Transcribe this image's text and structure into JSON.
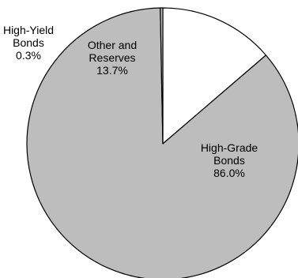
{
  "chart_data": {
    "type": "pie",
    "start": "12 o'clock",
    "direction": "clockwise",
    "slices": [
      {
        "name": "High-Grade Bonds",
        "value": 86.0,
        "label_lines": [
          "High-Grade",
          "Bonds",
          "86.0%"
        ],
        "color": "#bdbdbd"
      },
      {
        "name": "High-Yield Bonds",
        "value": 0.3,
        "label_lines": [
          "High-Yield",
          "Bonds",
          "0.3%"
        ],
        "color": "#bdbdbd"
      },
      {
        "name": "Other and Reserves",
        "value": 13.7,
        "label_lines": [
          "Other and",
          "Reserves",
          "13.7%"
        ],
        "color": "#ffffff"
      }
    ],
    "edge_color": "#000000"
  }
}
